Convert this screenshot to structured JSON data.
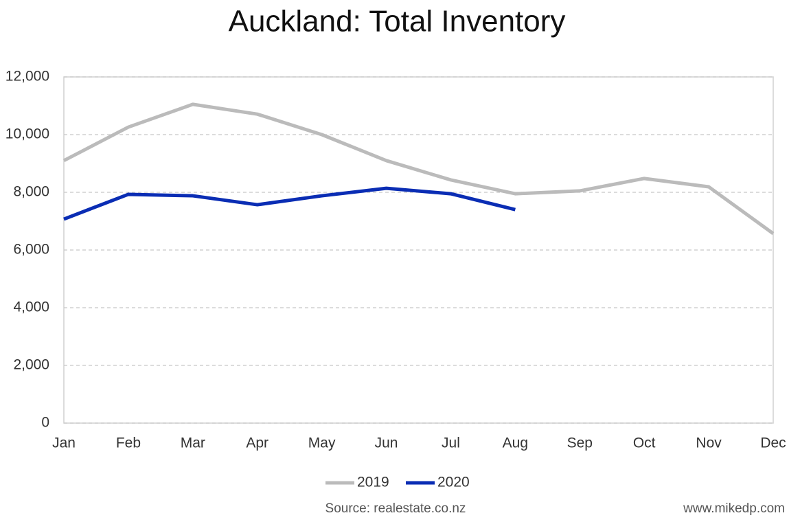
{
  "chart_data": {
    "type": "line",
    "title": "Auckland: Total Inventory",
    "categories": [
      "Jan",
      "Feb",
      "Mar",
      "Apr",
      "May",
      "Jun",
      "Jul",
      "Aug",
      "Sep",
      "Oct",
      "Nov",
      "Dec"
    ],
    "series": [
      {
        "name": "2019",
        "color": "#bbbbbb",
        "values": [
          9100,
          10260,
          11050,
          10710,
          10000,
          9100,
          8430,
          7950,
          8050,
          8480,
          8190,
          6570
        ]
      },
      {
        "name": "2020",
        "color": "#0a2db4",
        "values": [
          7070,
          7930,
          7880,
          7570,
          7880,
          8140,
          7950,
          7400,
          null,
          null,
          null,
          null
        ]
      }
    ],
    "ylim": [
      0,
      12000
    ],
    "yticks": [
      0,
      {
        "value": 2000,
        "label": "2,000"
      },
      {
        "value": 4000,
        "label": "4,000"
      },
      {
        "value": 6000,
        "label": "6,000"
      },
      {
        "value": 8000,
        "label": "8,000"
      },
      {
        "value": 10000,
        "label": "10,000"
      },
      {
        "value": 12000,
        "label": "12,000"
      }
    ],
    "grid": true,
    "legend": "bottom",
    "source": "Source: realestate.co.nz",
    "credit": "www.mikedp.com"
  }
}
